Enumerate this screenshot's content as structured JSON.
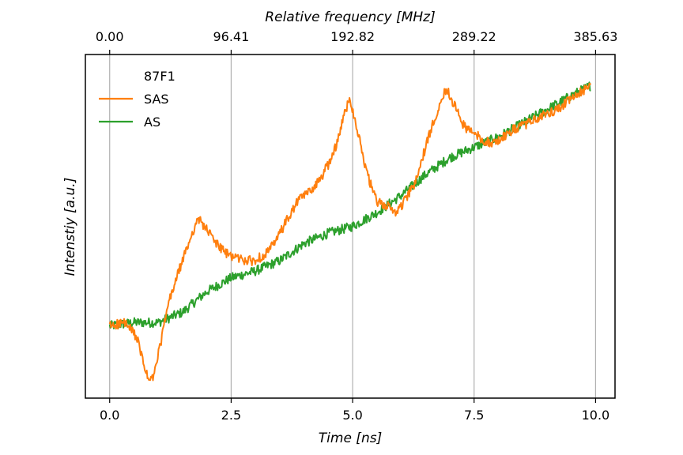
{
  "chart_data": {
    "type": "line",
    "xlabel": "Time [ns]",
    "ylabel": "Intenstiy [a.u.]",
    "top_xlabel": "Relative frequency [MHz]",
    "xlim": [
      -0.5,
      10.4
    ],
    "ylim": [
      0,
      1
    ],
    "x_ticks": [
      0.0,
      2.5,
      5.0,
      7.5,
      10.0
    ],
    "x_tick_labels": [
      "0.0",
      "2.5",
      "5.0",
      "7.5",
      "10.0"
    ],
    "top_tick_labels": [
      "0.00",
      "96.41",
      "192.82",
      "289.22",
      "385.63"
    ],
    "grid": "vertical",
    "legend": {
      "placement": "top-left",
      "title": "87F1",
      "entries": [
        "SAS",
        "AS"
      ]
    },
    "series": [
      {
        "name": "SAS",
        "color": "#ff7f0e",
        "x": [
          0.0,
          0.3,
          0.55,
          0.7,
          0.8,
          0.9,
          1.05,
          1.2,
          1.4,
          1.6,
          1.75,
          1.85,
          2.0,
          2.2,
          2.4,
          2.6,
          2.8,
          3.0,
          3.2,
          3.4,
          3.5,
          3.7,
          3.9,
          4.1,
          4.3,
          4.5,
          4.7,
          4.85,
          4.95,
          5.1,
          5.3,
          5.5,
          5.7,
          5.9,
          6.1,
          6.3,
          6.5,
          6.7,
          6.85,
          6.95,
          7.1,
          7.3,
          7.5,
          7.7,
          7.9,
          8.1,
          8.3,
          8.6,
          8.9,
          9.2,
          9.5,
          9.9
        ],
        "values": [
          0.21,
          0.22,
          0.18,
          0.1,
          0.05,
          0.06,
          0.16,
          0.27,
          0.36,
          0.44,
          0.5,
          0.52,
          0.49,
          0.45,
          0.42,
          0.41,
          0.4,
          0.4,
          0.42,
          0.45,
          0.48,
          0.53,
          0.58,
          0.6,
          0.63,
          0.68,
          0.75,
          0.84,
          0.87,
          0.78,
          0.65,
          0.57,
          0.56,
          0.54,
          0.58,
          0.63,
          0.73,
          0.82,
          0.88,
          0.9,
          0.85,
          0.79,
          0.77,
          0.75,
          0.74,
          0.76,
          0.78,
          0.8,
          0.82,
          0.84,
          0.87,
          0.91
        ]
      },
      {
        "name": "AS",
        "color": "#2ca02c",
        "x": [
          0.0,
          0.5,
          1.0,
          1.5,
          2.0,
          2.5,
          3.0,
          3.5,
          4.0,
          4.5,
          5.0,
          5.5,
          6.0,
          6.5,
          7.0,
          7.5,
          8.0,
          8.5,
          9.0,
          9.5,
          9.9
        ],
        "values": [
          0.21,
          0.22,
          0.22,
          0.25,
          0.31,
          0.35,
          0.37,
          0.4,
          0.45,
          0.48,
          0.5,
          0.54,
          0.59,
          0.65,
          0.7,
          0.73,
          0.76,
          0.8,
          0.84,
          0.88,
          0.91
        ]
      }
    ]
  }
}
